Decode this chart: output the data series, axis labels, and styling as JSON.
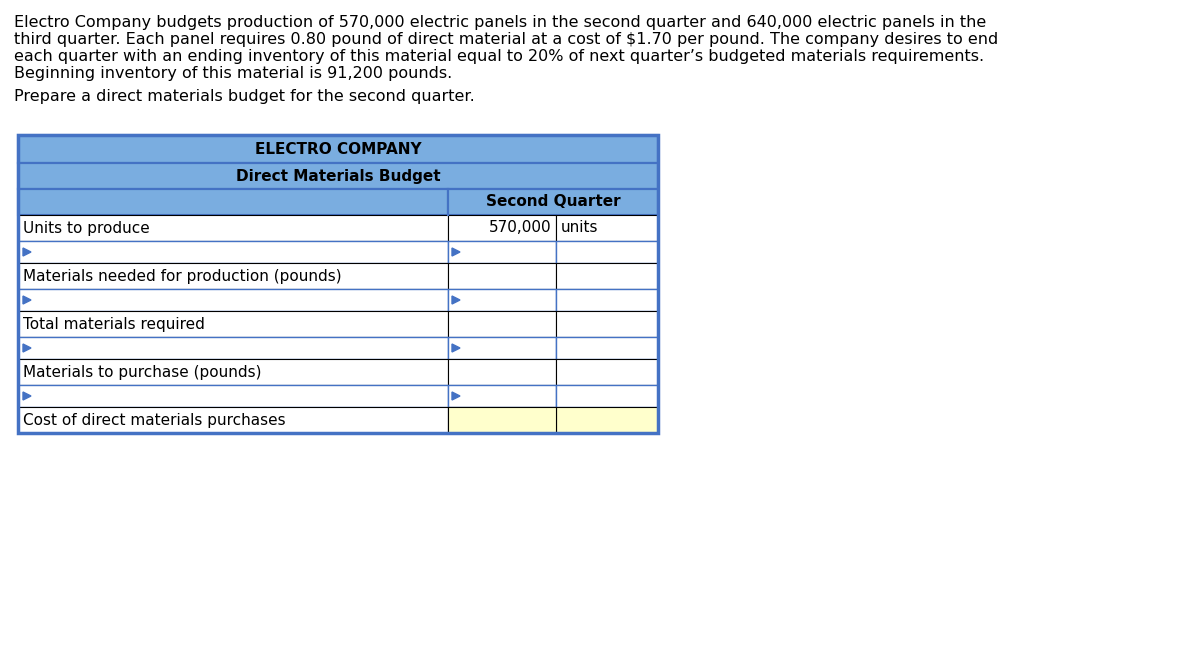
{
  "paragraph_text_lines": [
    "Electro Company budgets production of 570,000 electric panels in the second quarter and 640,000 electric panels in the",
    "third quarter. Each panel requires 0.80 pound of direct material at a cost of $1.70 per pound. The company desires to end",
    "each quarter with an ending inventory of this material equal to 20% of next quarter’s budgeted materials requirements.",
    "Beginning inventory of this material is 91,200 pounds."
  ],
  "prepare_text": "Prepare a direct materials budget for the second quarter.",
  "table_title1": "ELECTRO COMPANY",
  "table_title2": "Direct Materials Budget",
  "col_header": "Second Quarter",
  "header_bg": "#7aade0",
  "white_bg": "#ffffff",
  "yellow_bg": "#ffffcc",
  "table_outer_border": "#4472c4",
  "table_inner_border_arrow": "#4472c4",
  "table_inner_border_data": "#000000",
  "rows": [
    {
      "label": "Units to produce",
      "col1": "570,000",
      "col2": "units",
      "col1_bg": "#ffffff",
      "col2_bg": "#ffffff",
      "arrow": false,
      "top_border": "black"
    },
    {
      "label": "",
      "col1": "",
      "col2": "",
      "col1_bg": "#ffffff",
      "col2_bg": "#ffffff",
      "arrow": true,
      "top_border": "blue"
    },
    {
      "label": "Materials needed for production (pounds)",
      "col1": "",
      "col2": "",
      "col1_bg": "#ffffff",
      "col2_bg": "#ffffff",
      "arrow": false,
      "top_border": "black"
    },
    {
      "label": "",
      "col1": "",
      "col2": "",
      "col1_bg": "#ffffff",
      "col2_bg": "#ffffff",
      "arrow": true,
      "top_border": "blue"
    },
    {
      "label": "Total materials required",
      "col1": "",
      "col2": "",
      "col1_bg": "#ffffff",
      "col2_bg": "#ffffff",
      "arrow": false,
      "top_border": "black"
    },
    {
      "label": "",
      "col1": "",
      "col2": "",
      "col1_bg": "#ffffff",
      "col2_bg": "#ffffff",
      "arrow": true,
      "top_border": "blue"
    },
    {
      "label": "Materials to purchase (pounds)",
      "col1": "",
      "col2": "",
      "col1_bg": "#ffffff",
      "col2_bg": "#ffffff",
      "arrow": false,
      "top_border": "black"
    },
    {
      "label": "",
      "col1": "",
      "col2": "",
      "col1_bg": "#ffffff",
      "col2_bg": "#ffffff",
      "arrow": true,
      "top_border": "blue"
    },
    {
      "label": "Cost of direct materials purchases",
      "col1": "",
      "col2": "",
      "col1_bg": "#ffffff",
      "col2_bg": "#ffffcc",
      "arrow": false,
      "top_border": "black"
    }
  ],
  "font_size_para": 11.5,
  "font_size_table": 11.0
}
